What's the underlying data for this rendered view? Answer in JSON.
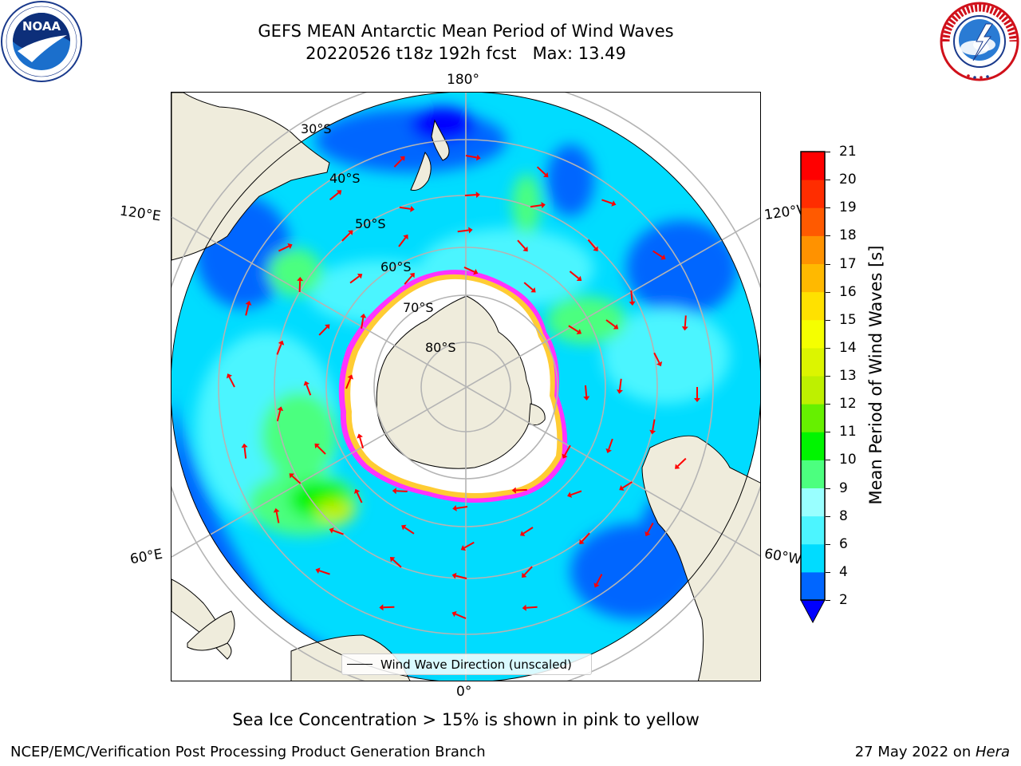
{
  "header": {
    "title_line1": "GEFS MEAN Antarctic Mean Period of Wind Waves",
    "title_line2": "20220526 t18z 192h fcst   Max: 13.49"
  },
  "logos": {
    "noaa": {
      "icon": "noaa-logo",
      "text": "NOAA",
      "ring_text": "NATIONAL OCEANIC AND ATMOSPHERIC ADMINISTRATION · U.S. DEPARTMENT OF COMMERCE"
    },
    "nws": {
      "icon": "nws-logo",
      "ring_text": "NATIONAL WEATHER SERVICE"
    }
  },
  "map": {
    "projection": "south-polar-stereographic",
    "longitude_labels": {
      "top": "180°",
      "bottom": "0°",
      "upper_left": "120°E",
      "upper_right": "120°W",
      "lower_left": "60°E",
      "lower_right": "60°W"
    },
    "latitude_labels": [
      "30°S",
      "40°S",
      "50°S",
      "60°S",
      "70°S",
      "80°S"
    ],
    "legend": "Wind Wave Direction (unscaled)",
    "colors": {
      "land": "#efecdc",
      "sea_ice_edge": [
        "#ff33ff",
        "#ffcc33"
      ],
      "arrows": "#ff0000",
      "graticule": "#b4b4b4"
    }
  },
  "colorbar": {
    "label": "Mean Period of Wind Waves [s]",
    "ticks": [
      "2",
      "4",
      "6",
      "8",
      "9",
      "10",
      "11",
      "12",
      "13",
      "14",
      "15",
      "16",
      "17",
      "18",
      "19",
      "20",
      "21"
    ],
    "colors": [
      "#0000ff",
      "#0066ff",
      "#00dcff",
      "#4cf5ff",
      "#99ffff",
      "#4cff7f",
      "#00f500",
      "#66f000",
      "#bef000",
      "#dcf500",
      "#f5ff00",
      "#ffe100",
      "#ffb900",
      "#ff9200",
      "#ff5a00",
      "#ff2d00",
      "#ff0000"
    ],
    "extend_color": "#0000ff"
  },
  "footer": {
    "note": "Sea Ice Concentration > 15% is shown in pink to yellow",
    "credit": "NCEP/EMC/Verification Post Processing Product Generation Branch",
    "date_prefix": "27 May 2022 on ",
    "host": "Hera"
  }
}
